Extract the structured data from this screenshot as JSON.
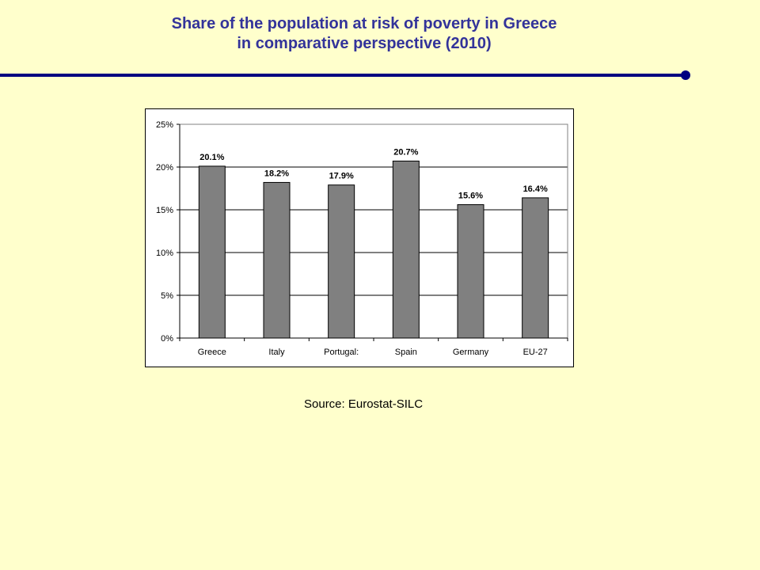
{
  "slide": {
    "title_line1": "Share of the population at risk of poverty in Greece",
    "title_line2": "in comparative perspective (2010)",
    "source": "Source: Eurostat-SILC",
    "colors": {
      "background": "#ffffcc",
      "title": "#33339a",
      "bar": "#808080",
      "accent_line": "#000080"
    }
  },
  "chart_data": {
    "type": "bar",
    "title": "",
    "xlabel": "",
    "ylabel": "",
    "categories": [
      "Greece",
      "Italy",
      "Portugal:",
      "Spain",
      "Germany",
      "EU-27"
    ],
    "values": [
      20.1,
      18.2,
      17.9,
      20.7,
      15.6,
      16.4
    ],
    "data_labels": [
      "20.1%",
      "18.2%",
      "17.9%",
      "20.7%",
      "15.6%",
      "16.4%"
    ],
    "ylim": [
      0,
      25
    ],
    "yticks": [
      0,
      5,
      10,
      15,
      20,
      25
    ],
    "ytick_labels": [
      "0%",
      "5%",
      "10%",
      "15%",
      "20%",
      "25%"
    ],
    "grid": true,
    "legend": "none"
  }
}
